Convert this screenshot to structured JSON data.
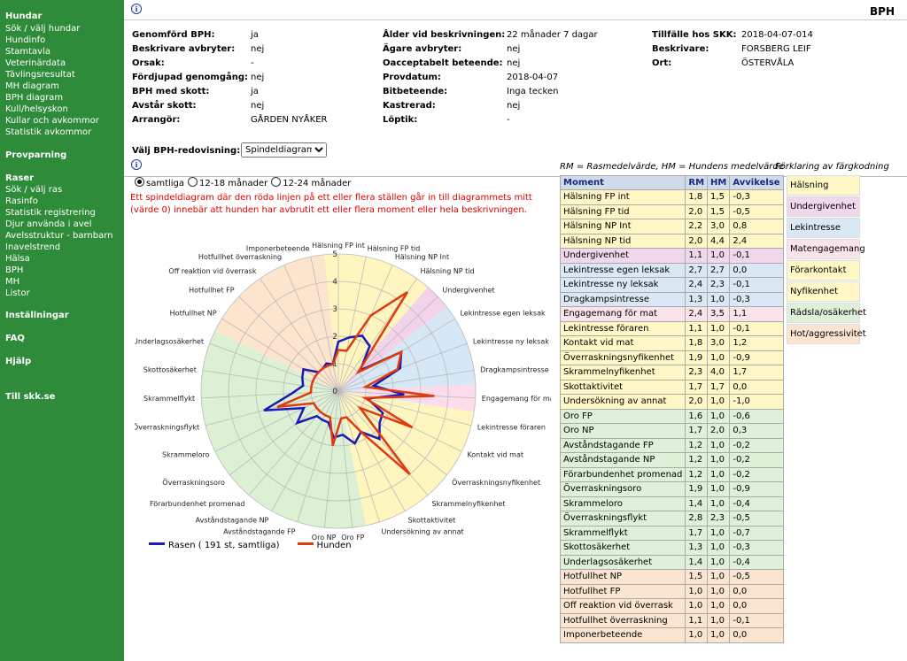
{
  "sidebar": {
    "sec1": "Hundar",
    "links1": [
      "Sök / välj hundar",
      "Hundinfo",
      "Stamtavla",
      "Veterinärdata",
      "Tävlingsresultat",
      "MH diagram",
      "BPH diagram",
      "Kull/helsyskon",
      "Kullar och avkommor",
      "Statistik avkommor"
    ],
    "sec2": "Provparning",
    "sec3": "Raser",
    "links3": [
      "Sök / välj ras",
      "Rasinfo",
      "Statistik registrering",
      "Djur använda i avel",
      "Avelsstruktur - barnbarn",
      "Inavelstrend",
      "Hälsa",
      "BPH",
      "MH",
      "Listor"
    ],
    "sec4": "Inställningar",
    "sec5": "FAQ",
    "sec6": "Hjälp",
    "sec7": "Till skk.se"
  },
  "page_title": "BPH",
  "info_icon": "i",
  "details": {
    "c1": [
      [
        "Genomförd BPH:",
        "ja"
      ],
      [
        "Beskrivare avbryter:",
        "nej"
      ],
      [
        "Orsak:",
        "-"
      ],
      [
        "Fördjupad genomgång:",
        "nej"
      ],
      [
        "BPH med skott:",
        "ja"
      ],
      [
        "Avstår skott:",
        "nej"
      ],
      [
        "Arrangör:",
        "GÅRDEN NYÅKER"
      ]
    ],
    "c2": [
      [
        "Ålder vid beskrivningen:",
        "22 månader 7 dagar"
      ],
      [
        "Ägare avbryter:",
        "nej"
      ],
      [
        "Oacceptabelt beteende:",
        "nej"
      ],
      [
        "Provdatum:",
        "2018-04-07"
      ],
      [
        "Bitbeteende:",
        "Inga tecken"
      ],
      [
        "Kastrerad:",
        "nej"
      ],
      [
        "Löptik:",
        "-"
      ]
    ],
    "c3": [
      [
        "Tillfälle hos SKK:",
        "2018-04-07-014"
      ],
      [
        "Beskrivare:",
        "FORSBERG LEIF"
      ],
      [
        "Ort:",
        "ÖSTERVÅLA"
      ]
    ]
  },
  "redovisning": {
    "label": "Välj BPH-redovisning:",
    "selected": "Spindeldiagram"
  },
  "radios": [
    {
      "label": "samtliga",
      "on": true
    },
    {
      "label": "12-18 månader",
      "on": false
    },
    {
      "label": "12-24 månader",
      "on": false
    }
  ],
  "warning": "Ett spindeldiagram där den röda linjen på ett eller flera ställen går in till diagrammets mitt (värde 0) innebär att hunden har avbrutit ett eller flera moment eller hela beskrivningen.",
  "legend_note": "RM = Rasmedelvärde,    HM = Hundens medelvärde",
  "color_key_title": "Förklaring av färgkodning",
  "table": {
    "headers": [
      "Moment",
      "RM",
      "HM",
      "Avvikelse"
    ],
    "rows": [
      [
        "Hälsning FP int",
        "1,8",
        "1,5",
        "-0,3",
        "#fff7c6"
      ],
      [
        "Hälsning FP tid",
        "2,0",
        "1,5",
        "-0,5",
        "#fff7c6"
      ],
      [
        "Hälsning NP Int",
        "2,2",
        "3,0",
        "0,8",
        "#fff7c6"
      ],
      [
        "Hälsning NP tid",
        "2,0",
        "4,4",
        "2,4",
        "#fff7c6"
      ],
      [
        "Undergivenhet",
        "1,1",
        "1,0",
        "-0,1",
        "#f1d7ec"
      ],
      [
        "Lekintresse egen leksak",
        "2,7",
        "2,7",
        "0,0",
        "#d9e8f4"
      ],
      [
        "Lekintresse ny leksak",
        "2,4",
        "2,3",
        "-0,1",
        "#d9e8f4"
      ],
      [
        "Dragkampsintresse",
        "1,3",
        "1,0",
        "-0,3",
        "#d9e8f4"
      ],
      [
        "Engagemang för mat",
        "2,4",
        "3,5",
        "1,1",
        "#fbe3ec"
      ],
      [
        "Lekintresse föraren",
        "1,1",
        "1,0",
        "-0,1",
        "#fff7c6"
      ],
      [
        "Kontakt vid mat",
        "1,8",
        "3,0",
        "1,2",
        "#fff7c6"
      ],
      [
        "Överraskningsnyfikenhet",
        "1,9",
        "1,0",
        "-0,9",
        "#fff7c6"
      ],
      [
        "Skrammelnyfikenhet",
        "2,3",
        "4,0",
        "1,7",
        "#fff7c6"
      ],
      [
        "Skottaktivitet",
        "1,7",
        "1,7",
        "0,0",
        "#fff7c6"
      ],
      [
        "Undersökning av annat",
        "2,0",
        "1,0",
        "-1,0",
        "#fff7c6"
      ],
      [
        "Oro FP",
        "1,6",
        "1,0",
        "-0,6",
        "#dff0d8"
      ],
      [
        "Oro NP",
        "1,7",
        "2,0",
        "0,3",
        "#dff0d8"
      ],
      [
        "Avståndstagande FP",
        "1,2",
        "1,0",
        "-0,2",
        "#dff0d8"
      ],
      [
        "Avståndstagande NP",
        "1,2",
        "1,0",
        "-0,2",
        "#dff0d8"
      ],
      [
        "Förarbundenhet promenad",
        "1,2",
        "1,0",
        "-0,2",
        "#dff0d8"
      ],
      [
        "Överraskningsoro",
        "1,9",
        "1,0",
        "-0,9",
        "#dff0d8"
      ],
      [
        "Skrammeloro",
        "1,4",
        "1,0",
        "-0,4",
        "#dff0d8"
      ],
      [
        "Överraskningsflykt",
        "2,8",
        "2,3",
        "-0,5",
        "#dff0d8"
      ],
      [
        "Skrammelflykt",
        "1,7",
        "1,0",
        "-0,7",
        "#dff0d8"
      ],
      [
        "Skottosäkerhet",
        "1,3",
        "1,0",
        "-0,3",
        "#dff0d8"
      ],
      [
        "Underlagsosäkerhet",
        "1,4",
        "1,0",
        "-0,4",
        "#dff0d8"
      ],
      [
        "Hotfullhet NP",
        "1,5",
        "1,0",
        "-0,5",
        "#fbe5d1"
      ],
      [
        "Hotfullhet FP",
        "1,0",
        "1,0",
        "0,0",
        "#fbe5d1"
      ],
      [
        "Off reaktion vid överrask",
        "1,0",
        "1,0",
        "0,0",
        "#fbe5d1"
      ],
      [
        "Hotfullhet överraskning",
        "1,1",
        "1,0",
        "-0,1",
        "#fbe5d1"
      ],
      [
        "Imponerbeteende",
        "1,0",
        "1,0",
        "0,0",
        "#fbe5d1"
      ]
    ]
  },
  "color_key": [
    [
      "Hälsning",
      "#fff7c6"
    ],
    [
      "Undergivenhet",
      "#f1d7ec"
    ],
    [
      "Lekintresse",
      "#d9e8f4"
    ],
    [
      "Matengagemang",
      "#fbe3ec"
    ],
    [
      "Förarkontakt",
      "#fff7c6"
    ],
    [
      "Nyfikenhet",
      "#fff7c6"
    ],
    [
      "Rädsla/osäkerhet",
      "#dff0d8"
    ],
    [
      "Hot/aggressivitet",
      "#fbe5d1"
    ]
  ],
  "chart_data": {
    "type": "radar",
    "rmax": 5,
    "ticks": [
      "0",
      "1",
      "2",
      "3",
      "4",
      "5"
    ],
    "categories": [
      "Hälsning FP int",
      "Hälsning FP tid",
      "Hälsning NP Int",
      "Hälsning NP tid",
      "Undergivenhet",
      "Lekintresse egen leksak",
      "Lekintresse ny leksak",
      "Dragkampsintresse",
      "Engagemang för mat",
      "Lekintresse föraren",
      "Kontakt vid mat",
      "Överraskningsnyfikenhet",
      "Skrammelnyfikenhet",
      "Skottaktivitet",
      "Undersökning av annat",
      "Oro FP",
      "Oro NP",
      "Avståndstagande FP",
      "Avståndstagande NP",
      "Förarbundenhet promenad",
      "Överraskningsoro",
      "Skrammeloro",
      "Överraskningsflykt",
      "Skrammelflykt",
      "Skottosäkerhet",
      "Underlagsosäkerhet",
      "Hotfullhet NP",
      "Hotfullhet FP",
      "Off reaktion vid överrask",
      "Hotfullhet överraskning",
      "Imponerbeteende"
    ],
    "series": [
      {
        "name": "Rasen ( 191 st, samtliga)",
        "color": "#1a1ab8",
        "values": [
          1.8,
          2.0,
          2.2,
          2.0,
          1.1,
          2.7,
          2.4,
          1.3,
          2.4,
          1.1,
          1.8,
          1.9,
          2.3,
          1.7,
          2.0,
          1.6,
          1.7,
          1.2,
          1.2,
          1.2,
          1.9,
          1.4,
          2.8,
          1.7,
          1.3,
          1.4,
          1.5,
          1.0,
          1.0,
          1.1,
          1.0
        ]
      },
      {
        "name": "Hunden",
        "color": "#e03a10",
        "values": [
          1.5,
          1.5,
          3.0,
          4.4,
          1.0,
          2.7,
          2.3,
          1.0,
          3.5,
          1.0,
          3.0,
          1.0,
          4.0,
          1.7,
          1.0,
          1.0,
          2.0,
          1.0,
          1.0,
          1.0,
          1.0,
          1.0,
          2.3,
          1.0,
          1.0,
          1.0,
          1.0,
          1.0,
          1.0,
          1.0,
          1.0
        ]
      }
    ],
    "sector_colors": [
      "#fff5bf",
      "#fff5bf",
      "#fff5bf",
      "#fff5bf",
      "#f2d3ea",
      "#d6e8f5",
      "#d6e8f5",
      "#d6e8f5",
      "#fcdcea",
      "#fff5bf",
      "#fff5bf",
      "#fff5bf",
      "#fff5bf",
      "#fff5bf",
      "#fff5bf",
      "#dcf0d4",
      "#dcf0d4",
      "#dcf0d4",
      "#dcf0d4",
      "#dcf0d4",
      "#dcf0d4",
      "#dcf0d4",
      "#dcf0d4",
      "#dcf0d4",
      "#dcf0d4",
      "#dcf0d4",
      "#fde4cc",
      "#fde4cc",
      "#fde4cc",
      "#fde4cc",
      "#fde4cc"
    ]
  }
}
